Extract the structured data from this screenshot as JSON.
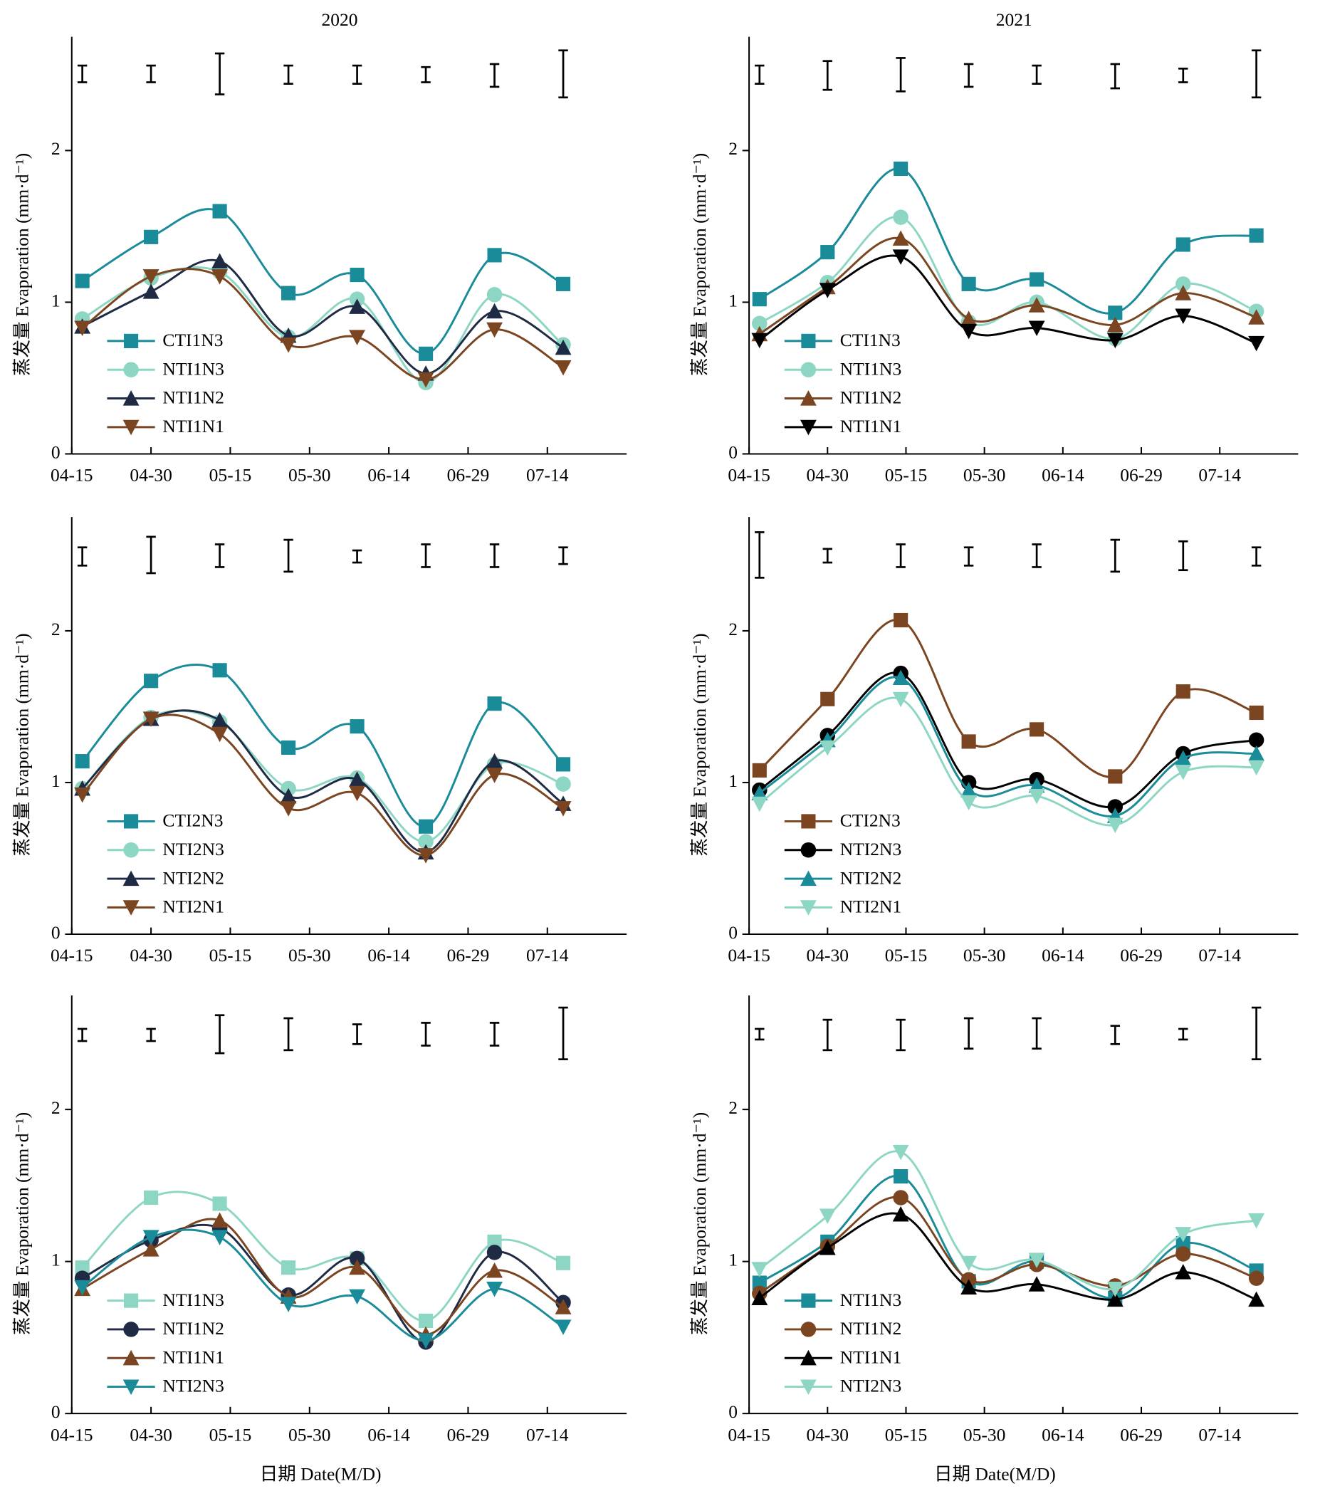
{
  "chart_data": [
    {
      "type": "line",
      "title": "2020",
      "ylabel": "蒸发量 Evaporation (mm·d⁻¹)",
      "legend": "lower left",
      "x": [
        "04-17",
        "04-30",
        "05-13",
        "05-26",
        "06-08",
        "06-21",
        "07-04",
        "07-17"
      ],
      "xlim": [
        "04-15",
        "07-29"
      ],
      "xticks": [
        "04-15",
        "04-30",
        "05-15",
        "05-30",
        "06-14",
        "06-29",
        "07-14"
      ],
      "ylim": [
        0,
        2.75
      ],
      "yticks": [
        0,
        1,
        2
      ],
      "error_bars": {
        "low": [
          2.45,
          2.45,
          2.37,
          2.44,
          2.44,
          2.45,
          2.42,
          2.35
        ],
        "high": [
          2.56,
          2.56,
          2.64,
          2.56,
          2.56,
          2.55,
          2.57,
          2.66
        ]
      },
      "series": [
        {
          "name": "CTI1N3",
          "color": "#1a8b98",
          "marker": "square",
          "values": [
            1.14,
            1.43,
            1.6,
            1.06,
            1.18,
            0.66,
            1.31,
            1.12
          ]
        },
        {
          "name": "NTI1N3",
          "color": "#8ed6c4",
          "marker": "circle",
          "values": [
            0.89,
            1.16,
            1.2,
            0.77,
            1.02,
            0.47,
            1.05,
            0.72
          ]
        },
        {
          "name": "NTI1N2",
          "color": "#1f2b44",
          "marker": "triangle-up",
          "values": [
            0.84,
            1.07,
            1.27,
            0.78,
            0.97,
            0.53,
            0.94,
            0.7
          ]
        },
        {
          "name": "NTI1N1",
          "color": "#7a4520",
          "marker": "triangle-down",
          "values": [
            0.83,
            1.17,
            1.17,
            0.72,
            0.77,
            0.49,
            0.82,
            0.57
          ]
        }
      ]
    },
    {
      "type": "line",
      "title": "2021",
      "ylabel": "蒸发量 Evaporation (mm·d⁻¹)",
      "legend": "lower left",
      "x": [
        "04-17",
        "04-30",
        "05-14",
        "05-27",
        "06-09",
        "06-24",
        "07-07",
        "07-21"
      ],
      "xlim": [
        "04-15",
        "07-29"
      ],
      "xticks": [
        "04-15",
        "04-30",
        "05-15",
        "05-30",
        "06-14",
        "06-29",
        "07-14"
      ],
      "ylim": [
        0,
        2.75
      ],
      "yticks": [
        0,
        1,
        2
      ],
      "error_bars": {
        "low": [
          2.44,
          2.4,
          2.39,
          2.42,
          2.44,
          2.41,
          2.45,
          2.35
        ],
        "high": [
          2.56,
          2.59,
          2.61,
          2.57,
          2.56,
          2.57,
          2.54,
          2.66
        ]
      },
      "series": [
        {
          "name": "CTI1N3",
          "color": "#1a8b98",
          "marker": "square",
          "values": [
            1.02,
            1.33,
            1.88,
            1.12,
            1.15,
            0.93,
            1.38,
            1.44
          ]
        },
        {
          "name": "NTI1N3",
          "color": "#8ed6c4",
          "marker": "circle",
          "values": [
            0.86,
            1.13,
            1.56,
            0.87,
            1.0,
            0.76,
            1.12,
            0.94
          ]
        },
        {
          "name": "NTI1N2",
          "color": "#7a4520",
          "marker": "triangle-up",
          "values": [
            0.79,
            1.1,
            1.42,
            0.89,
            0.98,
            0.85,
            1.06,
            0.9
          ]
        },
        {
          "name": "NTI1N1",
          "color": "#000000",
          "marker": "triangle-down",
          "values": [
            0.75,
            1.08,
            1.3,
            0.81,
            0.83,
            0.75,
            0.91,
            0.73
          ]
        }
      ]
    },
    {
      "type": "line",
      "ylabel": "蒸发量 Evaporation (mm·d⁻¹)",
      "legend": "lower left",
      "x": [
        "04-17",
        "04-30",
        "05-13",
        "05-26",
        "06-08",
        "06-21",
        "07-04",
        "07-17"
      ],
      "xlim": [
        "04-15",
        "07-29"
      ],
      "xticks": [
        "04-15",
        "04-30",
        "05-15",
        "05-30",
        "06-14",
        "06-29",
        "07-14"
      ],
      "ylim": [
        0,
        2.75
      ],
      "yticks": [
        0,
        1,
        2
      ],
      "error_bars": {
        "low": [
          2.43,
          2.38,
          2.42,
          2.39,
          2.45,
          2.42,
          2.42,
          2.44
        ],
        "high": [
          2.55,
          2.62,
          2.57,
          2.6,
          2.53,
          2.57,
          2.57,
          2.55
        ]
      },
      "series": [
        {
          "name": "CTI2N3",
          "color": "#1a8b98",
          "marker": "square",
          "values": [
            1.14,
            1.67,
            1.74,
            1.23,
            1.37,
            0.71,
            1.52,
            1.12
          ]
        },
        {
          "name": "NTI2N3",
          "color": "#8ed6c4",
          "marker": "circle",
          "values": [
            0.96,
            1.43,
            1.4,
            0.96,
            1.03,
            0.61,
            1.12,
            0.99
          ]
        },
        {
          "name": "NTI2N2",
          "color": "#1f2b44",
          "marker": "triangle-up",
          "values": [
            0.96,
            1.42,
            1.41,
            0.91,
            1.02,
            0.54,
            1.14,
            0.86
          ]
        },
        {
          "name": "NTI2N1",
          "color": "#7a4520",
          "marker": "triangle-down",
          "values": [
            0.92,
            1.42,
            1.32,
            0.83,
            0.93,
            0.52,
            1.05,
            0.83
          ]
        }
      ]
    },
    {
      "type": "line",
      "ylabel": "蒸发量 Evaporation (mm·d⁻¹)",
      "legend": "lower left",
      "x": [
        "04-17",
        "04-30",
        "05-14",
        "05-27",
        "06-09",
        "06-24",
        "07-07",
        "07-21"
      ],
      "xlim": [
        "04-15",
        "07-29"
      ],
      "xticks": [
        "04-15",
        "04-30",
        "05-15",
        "05-30",
        "06-14",
        "06-29",
        "07-14"
      ],
      "ylim": [
        0,
        2.75
      ],
      "yticks": [
        0,
        1,
        2
      ],
      "error_bars": {
        "low": [
          2.35,
          2.45,
          2.42,
          2.43,
          2.42,
          2.39,
          2.4,
          2.43
        ],
        "high": [
          2.65,
          2.54,
          2.57,
          2.55,
          2.57,
          2.6,
          2.59,
          2.55
        ]
      },
      "series": [
        {
          "name": "CTI2N3",
          "color": "#7a4520",
          "marker": "square",
          "values": [
            1.08,
            1.55,
            2.07,
            1.27,
            1.35,
            1.04,
            1.6,
            1.46
          ]
        },
        {
          "name": "NTI2N3",
          "color": "#000000",
          "marker": "circle",
          "values": [
            0.95,
            1.31,
            1.72,
            1.0,
            1.02,
            0.84,
            1.19,
            1.28
          ]
        },
        {
          "name": "NTI2N2",
          "color": "#1a8b98",
          "marker": "triangle-up",
          "values": [
            0.93,
            1.28,
            1.69,
            0.95,
            0.98,
            0.78,
            1.16,
            1.19
          ]
        },
        {
          "name": "NTI2N1",
          "color": "#8ed6c4",
          "marker": "triangle-down",
          "values": [
            0.86,
            1.23,
            1.55,
            0.87,
            0.91,
            0.72,
            1.07,
            1.1
          ]
        }
      ]
    },
    {
      "type": "line",
      "ylabel": "蒸发量 Evaporation (mm·d⁻¹)",
      "xlabel": "日期 Date(M/D)",
      "legend": "lower left",
      "x": [
        "04-17",
        "04-30",
        "05-13",
        "05-26",
        "06-08",
        "06-21",
        "07-04",
        "07-17"
      ],
      "xlim": [
        "04-15",
        "07-29"
      ],
      "xticks": [
        "04-15",
        "04-30",
        "05-15",
        "05-30",
        "06-14",
        "06-29",
        "07-14"
      ],
      "ylim": [
        0,
        2.75
      ],
      "yticks": [
        0,
        1,
        2
      ],
      "error_bars": {
        "low": [
          2.45,
          2.45,
          2.37,
          2.39,
          2.43,
          2.42,
          2.42,
          2.33
        ],
        "high": [
          2.53,
          2.53,
          2.62,
          2.6,
          2.56,
          2.57,
          2.57,
          2.67
        ]
      },
      "series": [
        {
          "name": "NTI1N3",
          "color": "#8ed6c4",
          "marker": "square",
          "values": [
            0.96,
            1.42,
            1.38,
            0.96,
            1.02,
            0.61,
            1.13,
            0.99
          ]
        },
        {
          "name": "NTI1N2",
          "color": "#1f2b44",
          "marker": "circle",
          "values": [
            0.89,
            1.14,
            1.22,
            0.78,
            1.02,
            0.47,
            1.06,
            0.73
          ]
        },
        {
          "name": "NTI1N1",
          "color": "#7a4520",
          "marker": "triangle-up",
          "values": [
            0.82,
            1.08,
            1.27,
            0.77,
            0.96,
            0.52,
            0.94,
            0.7
          ]
        },
        {
          "name": "NTI2N3",
          "color": "#1a8b98",
          "marker": "triangle-down",
          "values": [
            0.83,
            1.16,
            1.16,
            0.72,
            0.77,
            0.48,
            0.82,
            0.57
          ]
        }
      ]
    },
    {
      "type": "line",
      "ylabel": "蒸发量 Evaporation (mm·d⁻¹)",
      "xlabel": "日期 Date(M/D)",
      "legend": "lower left",
      "x": [
        "04-17",
        "04-30",
        "05-14",
        "05-27",
        "06-09",
        "06-24",
        "07-07",
        "07-21"
      ],
      "xlim": [
        "04-15",
        "07-29"
      ],
      "xticks": [
        "04-15",
        "04-30",
        "05-15",
        "05-30",
        "06-14",
        "06-29",
        "07-14"
      ],
      "ylim": [
        0,
        2.75
      ],
      "yticks": [
        0,
        1,
        2
      ],
      "error_bars": {
        "low": [
          2.46,
          2.39,
          2.39,
          2.4,
          2.4,
          2.43,
          2.46,
          2.33
        ],
        "high": [
          2.53,
          2.59,
          2.59,
          2.6,
          2.6,
          2.55,
          2.53,
          2.67
        ]
      },
      "series": [
        {
          "name": "NTI1N3",
          "color": "#1a8b98",
          "marker": "square",
          "values": [
            0.86,
            1.13,
            1.56,
            0.87,
            1.0,
            0.76,
            1.12,
            0.94
          ]
        },
        {
          "name": "NTI1N2",
          "color": "#7a4520",
          "marker": "circle",
          "values": [
            0.79,
            1.1,
            1.42,
            0.88,
            0.98,
            0.84,
            1.05,
            0.89
          ]
        },
        {
          "name": "NTI1N1",
          "color": "#000000",
          "marker": "triangle-up",
          "values": [
            0.76,
            1.09,
            1.31,
            0.83,
            0.85,
            0.75,
            0.93,
            0.75
          ]
        },
        {
          "name": "NTI2N3",
          "color": "#8ed6c4",
          "marker": "triangle-down",
          "values": [
            0.95,
            1.3,
            1.72,
            0.99,
            1.01,
            0.82,
            1.18,
            1.27
          ]
        }
      ]
    }
  ]
}
